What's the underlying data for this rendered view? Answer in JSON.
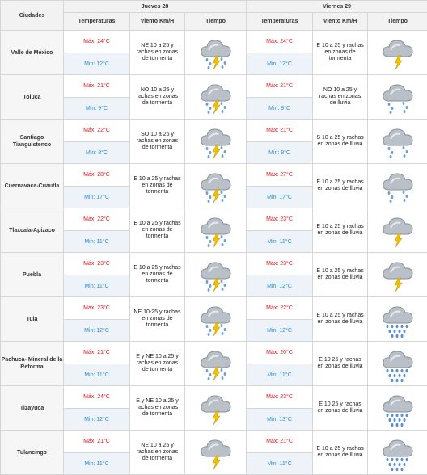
{
  "header": {
    "cities_label": "Ciudades",
    "days": [
      {
        "label": "Jueves 28"
      },
      {
        "label": "Viernes 29"
      }
    ],
    "columns": {
      "temp": "Temperaturas",
      "wind": "Viento Km/H",
      "weather": "Tiempo"
    }
  },
  "rows": [
    {
      "city": "Valle de México",
      "d1": {
        "max": "Máx: 24°C",
        "min": "Min: 12°C",
        "wind": "NE 10 a 25 y rachas en zonas de tormenta",
        "icon": "storm-rain-icon"
      },
      "d2": {
        "max": "Máx: 24°C",
        "min": "Min: 12°C",
        "wind": "E 10 a 25 y rachas en zonas de tormenta",
        "icon": "storm-icon"
      }
    },
    {
      "city": "Toluca",
      "d1": {
        "max": "Máx: 21°C",
        "min": "Min: 9°C",
        "wind": "NO 10 a 25 y rachas en zonas de tormenta",
        "icon": "storm-rain-icon"
      },
      "d2": {
        "max": "Máx: 21°C",
        "min": "Min: 9°C",
        "wind": "NO 10 a 25 y rachas en zonas de lluvia",
        "icon": "rain-icon"
      }
    },
    {
      "city": "Santiago Tianguistenco",
      "d1": {
        "max": "Máx: 22°C",
        "min": "Min: 8°C",
        "wind": "SO 10 a 25 y rachas en zonas de tormenta",
        "icon": "storm-rain-icon"
      },
      "d2": {
        "max": "Máx: 21°C",
        "min": "Min: 8°C",
        "wind": "S 10 a 25 y rachas en zonas de lluvia",
        "icon": "rain-icon"
      }
    },
    {
      "city": "Cuernavaca-Cuautla",
      "d1": {
        "max": "Máx: 28°C",
        "min": "Min: 17°C",
        "wind": "E 10 a 25 y rachas en zonas de tormenta",
        "icon": "storm-rain-icon"
      },
      "d2": {
        "max": "Máx: 27°C",
        "min": "Min: 17°C",
        "wind": "E 10 a 25 y rachas en zonas de lluvia",
        "icon": "rain-icon"
      }
    },
    {
      "city": "Tlaxcala-Apizaco",
      "d1": {
        "max": "Máx: 22°C",
        "min": "Min: 11°C",
        "wind": "E 10 a 25 y rachas en zonas de tormenta",
        "icon": "storm-rain-icon"
      },
      "d2": {
        "max": "Máx: 23°C",
        "min": "Min: 11°C",
        "wind": "E 10 a 25 y rachas en zonas de lluvia",
        "icon": "storm-icon"
      }
    },
    {
      "city": "Puebla",
      "d1": {
        "max": "Máx: 23°C",
        "min": "Min: 11°C",
        "wind": "E 10 a 25 y rachas en zonas de tormenta",
        "icon": "storm-rain-icon"
      },
      "d2": {
        "max": "Máx: 23°C",
        "min": "Min: 12°C",
        "wind": "E 10 a 25 y rachas en zonas de lluvia",
        "icon": "storm-icon"
      }
    },
    {
      "city": "Tula",
      "d1": {
        "max": "Máx: 23°C",
        "min": "Min: 12°C",
        "wind": "NE 10-25 y rachas en zonas de tormenta",
        "icon": "storm-rain-icon"
      },
      "d2": {
        "max": "Máx: 22°C",
        "min": "Min: 12°C",
        "wind": "E 10 a 25 y rachas en zonas de lluvia",
        "icon": "heavy-rain-icon"
      }
    },
    {
      "city": "Pachuca- Mineral de la Reforma",
      "d1": {
        "max": "Máx: 21°C",
        "min": "Min: 11°C",
        "wind": "E y NE 10 a 25 y rachas en zonas de tormenta",
        "icon": "storm-rain-icon"
      },
      "d2": {
        "max": "Máx: 20°C",
        "min": "Min: 11°C",
        "wind": "E 10 25 y rachas en zonas de lluvia",
        "icon": "heavy-rain-icon"
      }
    },
    {
      "city": "Tizayuca",
      "d1": {
        "max": "Máx: 24°C",
        "min": "Min: 12°C",
        "wind": "E y NE 10 a 25 y rachas en zonas de tormenta",
        "icon": "storm-icon"
      },
      "d2": {
        "max": "Máx: 23°C",
        "min": "Min: 13°C",
        "wind": "E 10 25 y rachas en zonas de lluvia",
        "icon": "heavy-rain-icon"
      }
    },
    {
      "city": "Tulancingo",
      "d1": {
        "max": "Máx: 21°C",
        "min": "Min: 11°C",
        "wind": "NE 10 a 25 y rachas en zonas de tormenta",
        "icon": "storm-icon"
      },
      "d2": {
        "max": "Máx: 21°C",
        "min": "Min: 11°C",
        "wind": "E 10 a 25 y rachas en zonas de lluvia",
        "icon": "heavy-rain-icon"
      }
    }
  ]
}
